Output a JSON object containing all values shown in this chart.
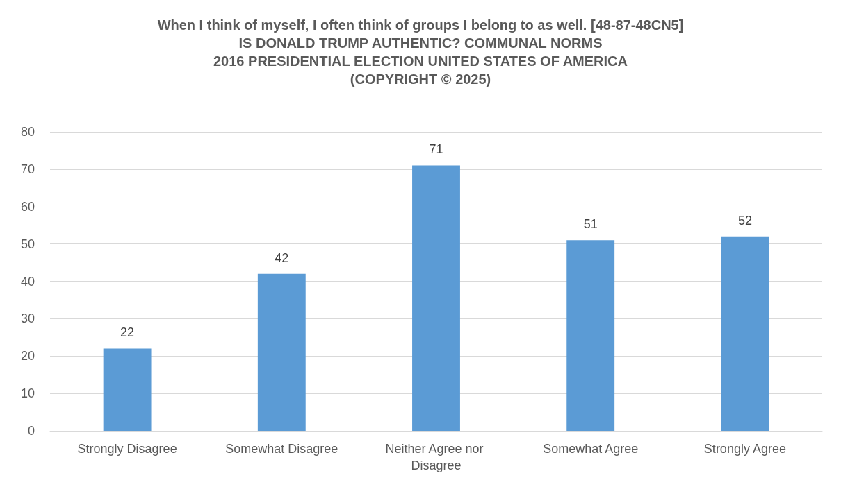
{
  "chart_data": {
    "type": "bar",
    "title": "When I think of myself, I often think of groups I belong to as well. [48-87-48CN5]\nIS DONALD TRUMP AUTHENTIC? COMMUNAL NORMS\n2016 PRESIDENTIAL ELECTION UNITED STATES OF AMERICA\n(COPYRIGHT © 2025)",
    "categories": [
      "Strongly Disagree",
      "Somewhat Disagree",
      "Neither Agree nor Disagree",
      "Somewhat Agree",
      "Strongly Agree"
    ],
    "values": [
      22,
      42,
      71,
      51,
      52
    ],
    "color": "#5b9bd5",
    "ylim": [
      0,
      80
    ],
    "yticks": [
      0,
      10,
      20,
      30,
      40,
      50,
      60,
      70,
      80
    ],
    "grid": "y",
    "data_labels": true
  }
}
